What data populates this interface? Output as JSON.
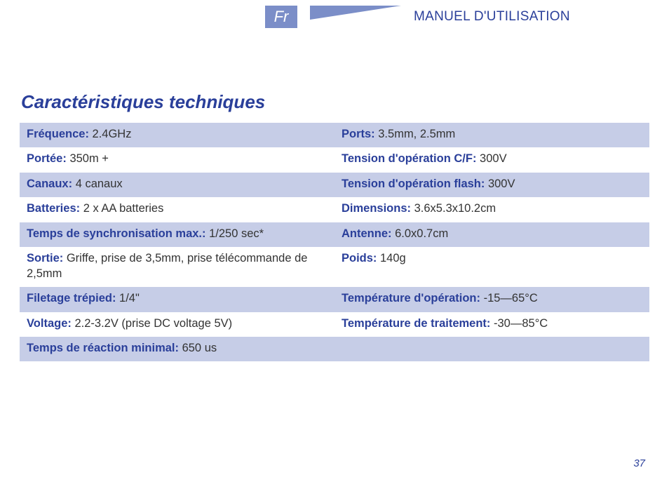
{
  "header": {
    "lang_badge": "Fr",
    "manual_title": "MANUEL D'UTILISATION",
    "wedge_color": "#7b8ec8"
  },
  "section_title": "Caractéristiques techniques",
  "colors": {
    "brand": "#2a3f9a",
    "row_shade": "#c6cde7",
    "text": "#333333",
    "badge_bg": "#7b8ec8",
    "background": "#ffffff"
  },
  "typography": {
    "section_title_fontsize": 26,
    "body_fontsize": 16.5,
    "header_fontsize": 19,
    "badge_fontsize": 22
  },
  "spec_rows": [
    {
      "shaded": true,
      "left": {
        "label": "Fréquence:",
        "value": " 2.4GHz"
      },
      "right": {
        "label": "Ports:",
        "value": " 3.5mm, 2.5mm"
      }
    },
    {
      "shaded": false,
      "left": {
        "label": "Portée:",
        "value": " 350m +"
      },
      "right": {
        "label": "Tension d'opération C/F:",
        "value": " 300V"
      }
    },
    {
      "shaded": true,
      "left": {
        "label": "Canaux:",
        "value": " 4 canaux"
      },
      "right": {
        "label": "Tension d'opération flash:",
        "value": " 300V"
      }
    },
    {
      "shaded": false,
      "left": {
        "label": "Batteries:",
        "value": " 2 x AA batteries"
      },
      "right": {
        "label": "Dimensions:",
        "value": " 3.6x5.3x10.2cm"
      }
    },
    {
      "shaded": true,
      "left": {
        "label": "Temps de synchronisation max.:",
        "value": " 1/250 sec*"
      },
      "right": {
        "label": "Antenne:",
        "value": " 6.0x0.7cm"
      }
    },
    {
      "shaded": false,
      "left": {
        "label": "Sortie:",
        "value": " Griffe, prise de 3,5mm, prise télécommande de 2,5mm"
      },
      "right": {
        "label": "Poids:",
        "value": " 140g"
      }
    },
    {
      "shaded": true,
      "left": {
        "label": "Filetage trépied:",
        "value": " 1/4\""
      },
      "right": {
        "label": "Température d'opération:",
        "value": " -15—65°C"
      }
    },
    {
      "shaded": false,
      "left": {
        "label": "Voltage:",
        "value": " 2.2-3.2V (prise DC voltage 5V)"
      },
      "right": {
        "label": "Température de traitement:",
        "value": " -30—85°C"
      }
    },
    {
      "shaded": true,
      "left": {
        "label": "Temps de réaction minimal:",
        "value": " 650 us"
      },
      "right": {
        "label": "",
        "value": ""
      }
    }
  ],
  "page_number": "37"
}
